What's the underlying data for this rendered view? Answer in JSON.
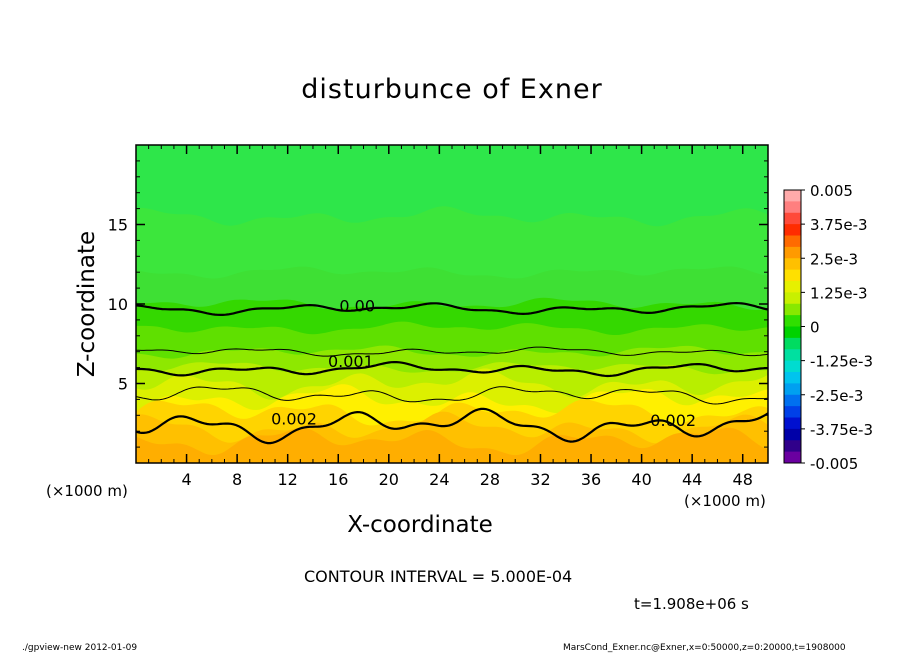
{
  "chart_data": {
    "type": "heatmap",
    "title": "disturbunce of Exner",
    "xlabel": "X-coordinate",
    "ylabel": "Z-coordinate",
    "x_unit_label": "(×1000 m)",
    "xlim": [
      0,
      50
    ],
    "ylim": [
      0,
      20
    ],
    "x_ticks": [
      4,
      8,
      12,
      16,
      20,
      24,
      28,
      32,
      36,
      40,
      44,
      48
    ],
    "y_ticks": [
      5,
      10,
      15
    ],
    "colorbar": {
      "range": [
        -0.005,
        0.005
      ],
      "tick_labels": [
        "0.005",
        "3.75e-3",
        "2.5e-3",
        "1.25e-3",
        "0",
        "-1.25e-3",
        "-2.5e-3",
        "-3.75e-3",
        "-0.005"
      ],
      "colors": [
        "#ffaaaa",
        "#ff7f7f",
        "#ff4a3a",
        "#ff2c00",
        "#ff6a00",
        "#ff9a00",
        "#ffc000",
        "#ffe000",
        "#e6f000",
        "#c8f000",
        "#88e800",
        "#30df00",
        "#00d200",
        "#00dc60",
        "#00e0a0",
        "#00dcd0",
        "#00c4ee",
        "#00a0f0",
        "#0070f0",
        "#0040e8",
        "#0010d0",
        "#0000a8",
        "#30008a",
        "#6a00a0"
      ]
    },
    "contour_labels": [
      {
        "text": "0.00",
        "x": 17.5,
        "z": 9.9
      },
      {
        "text": "0.001",
        "x": 17.0,
        "z": 6.4
      },
      {
        "text": "0.002",
        "x": 12.5,
        "z": 2.8
      },
      {
        "text": "0.002",
        "x": 42.5,
        "z": 2.7
      }
    ],
    "field_bands": [
      {
        "z_top": 20,
        "color": "#2ee64a"
      },
      {
        "z_top": 15.5,
        "color": "#3ce63c"
      },
      {
        "z_top": 12.0,
        "color": "#3ee034"
      },
      {
        "z_top": 10.0,
        "color": "#34d800"
      },
      {
        "z_top": 8.5,
        "color": "#5fe000"
      },
      {
        "z_top": 7.0,
        "color": "#8ee800"
      },
      {
        "z_top": 6.0,
        "color": "#b8ee00"
      },
      {
        "z_top": 5.0,
        "color": "#dcf000"
      },
      {
        "z_top": 4.0,
        "color": "#fff000"
      },
      {
        "z_top": 3.2,
        "color": "#ffd400"
      },
      {
        "z_top": 2.2,
        "color": "#ffc000"
      },
      {
        "z_top": 1.4,
        "color": "#ffae00"
      }
    ]
  },
  "contour_interval_text": "CONTOUR INTERVAL = 5.000E-04",
  "time_text": "t=1.908e+06 s",
  "footer_left": "./gpview-new   2012-01-09",
  "footer_right": "MarsCond_Exner.nc@Exner,x=0:50000,z=0:20000,t=1908000"
}
